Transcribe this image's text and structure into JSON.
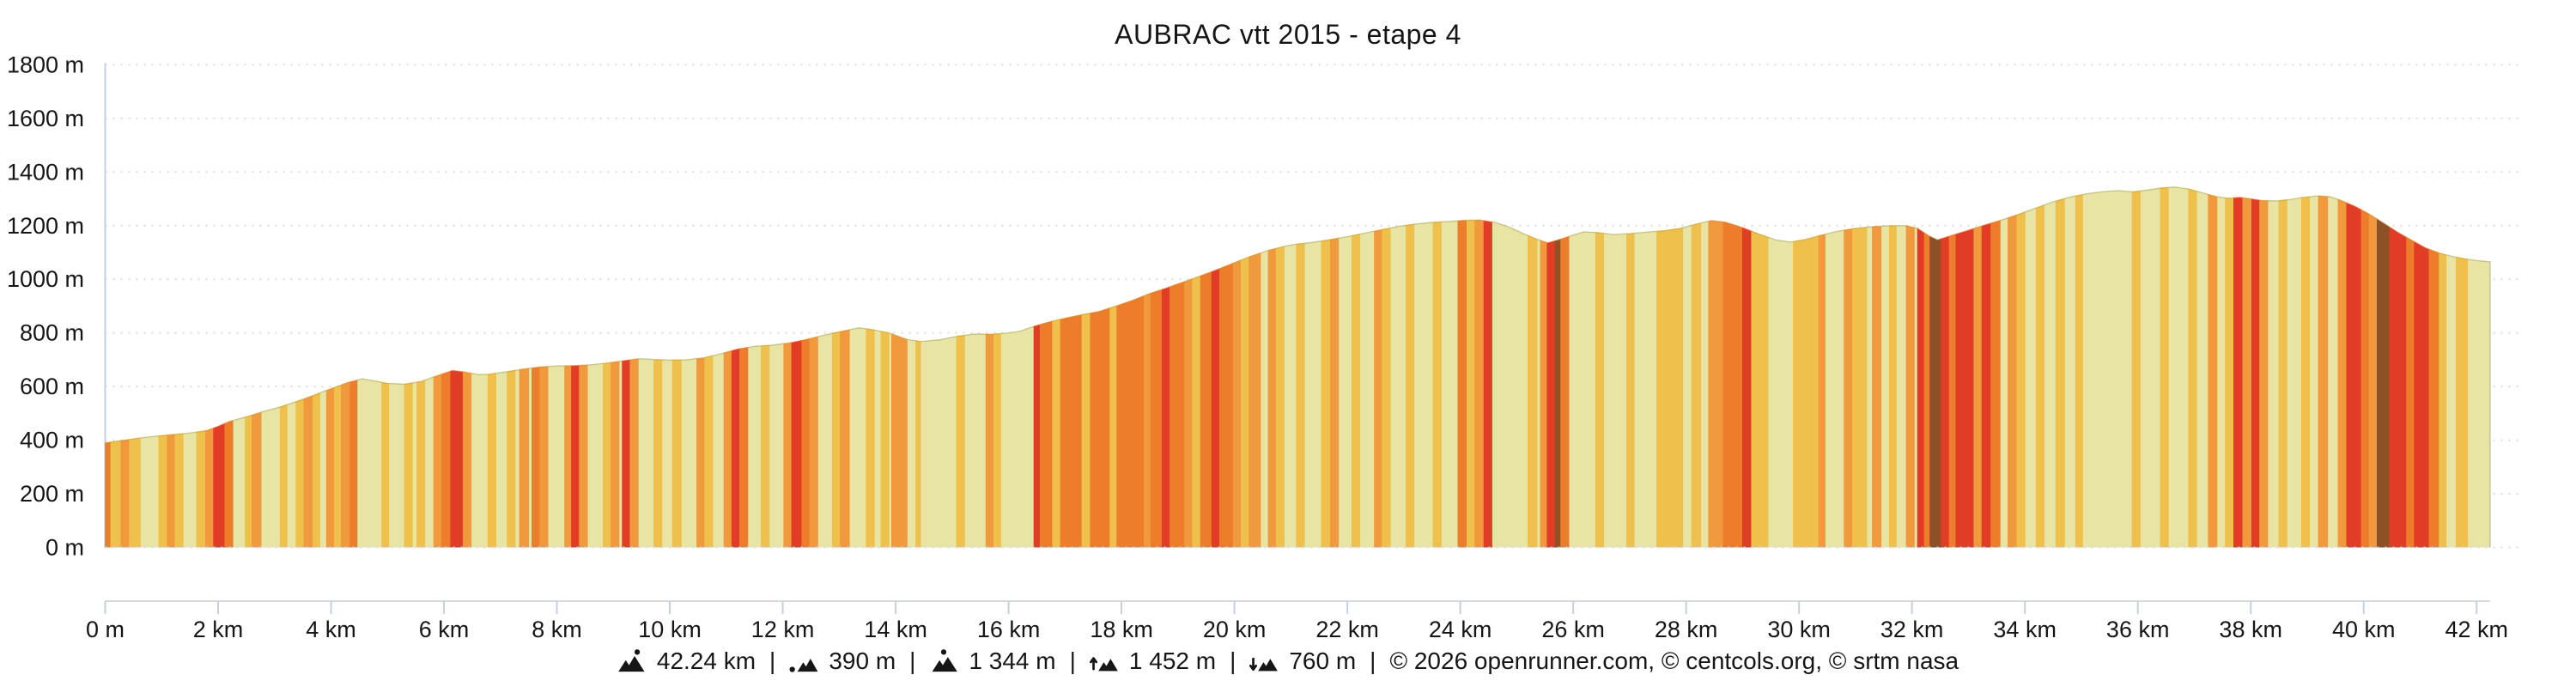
{
  "title": "AUBRAC vtt 2015 - etape 4",
  "chart_data": {
    "type": "area",
    "title": "AUBRAC vtt 2015 - etape 4",
    "x_unit": "km",
    "y_unit": "m",
    "xlim": [
      0,
      42.24
    ],
    "ylim": [
      0,
      1800
    ],
    "grid": "dotted-horizontal",
    "legend": "none",
    "colors": {
      "pale": "#e8e5a4",
      "gold": "#efc14c",
      "orange": "#f19a3d",
      "deep": "#ed7c2b",
      "red": "#e13d26",
      "brown": "#8e5126",
      "y_axis_line": "#c6d0e2",
      "tick_line": "#c6d0e2",
      "grid_line": "#dcdcdc",
      "x_axis_line": "#d9d9d9",
      "text": "#161616",
      "outline": "#8e8e5e"
    },
    "y_ticks": [
      {
        "value": 0,
        "label": "0 m"
      },
      {
        "value": 200,
        "label": "200 m"
      },
      {
        "value": 400,
        "label": "400 m"
      },
      {
        "value": 600,
        "label": "600 m"
      },
      {
        "value": 800,
        "label": "800 m"
      },
      {
        "value": 1000,
        "label": "1000 m"
      },
      {
        "value": 1200,
        "label": "1200 m"
      },
      {
        "value": 1400,
        "label": "1400 m"
      },
      {
        "value": 1600,
        "label": "1600 m"
      },
      {
        "value": 1800,
        "label": "1800 m"
      }
    ],
    "x_ticks": [
      {
        "value": 0,
        "label": "0 m"
      },
      {
        "value": 2,
        "label": "2 km"
      },
      {
        "value": 4,
        "label": "4 km"
      },
      {
        "value": 6,
        "label": "6 km"
      },
      {
        "value": 8,
        "label": "8 km"
      },
      {
        "value": 10,
        "label": "10 km"
      },
      {
        "value": 12,
        "label": "12 km"
      },
      {
        "value": 14,
        "label": "14 km"
      },
      {
        "value": 16,
        "label": "16 km"
      },
      {
        "value": 18,
        "label": "18 km"
      },
      {
        "value": 20,
        "label": "20 km"
      },
      {
        "value": 22,
        "label": "22 km"
      },
      {
        "value": 24,
        "label": "24 km"
      },
      {
        "value": 26,
        "label": "26 km"
      },
      {
        "value": 28,
        "label": "28 km"
      },
      {
        "value": 30,
        "label": "30 km"
      },
      {
        "value": 32,
        "label": "32 km"
      },
      {
        "value": 34,
        "label": "34 km"
      },
      {
        "value": 36,
        "label": "36 km"
      },
      {
        "value": 38,
        "label": "38 km"
      },
      {
        "value": 40,
        "label": "40 km"
      },
      {
        "value": 42,
        "label": "42 km"
      }
    ],
    "profile": [
      [
        0,
        390
      ],
      [
        0.3,
        399
      ],
      [
        0.6,
        408
      ],
      [
        0.9,
        415
      ],
      [
        1.2,
        421
      ],
      [
        1.5,
        427
      ],
      [
        1.8,
        436
      ],
      [
        2.0,
        452
      ],
      [
        2.2,
        470
      ],
      [
        2.5,
        487
      ],
      [
        2.8,
        507
      ],
      [
        3.1,
        524
      ],
      [
        3.4,
        545
      ],
      [
        3.7,
        568
      ],
      [
        4.0,
        592
      ],
      [
        4.3,
        615
      ],
      [
        4.55,
        629
      ],
      [
        4.8,
        620
      ],
      [
        5.0,
        612
      ],
      [
        5.3,
        609
      ],
      [
        5.6,
        619
      ],
      [
        5.9,
        642
      ],
      [
        6.15,
        660
      ],
      [
        6.35,
        655
      ],
      [
        6.6,
        645
      ],
      [
        6.8,
        646
      ],
      [
        7.1,
        655
      ],
      [
        7.4,
        665
      ],
      [
        7.7,
        673
      ],
      [
        8.0,
        677
      ],
      [
        8.3,
        678
      ],
      [
        8.6,
        681
      ],
      [
        8.9,
        688
      ],
      [
        9.2,
        697
      ],
      [
        9.45,
        704
      ],
      [
        9.7,
        701
      ],
      [
        10.0,
        699
      ],
      [
        10.3,
        700
      ],
      [
        10.6,
        707
      ],
      [
        10.9,
        722
      ],
      [
        11.2,
        740
      ],
      [
        11.5,
        750
      ],
      [
        11.8,
        754
      ],
      [
        12.1,
        762
      ],
      [
        12.4,
        775
      ],
      [
        12.7,
        790
      ],
      [
        13.0,
        804
      ],
      [
        13.35,
        819
      ],
      [
        13.6,
        812
      ],
      [
        13.9,
        799
      ],
      [
        14.2,
        776
      ],
      [
        14.45,
        768
      ],
      [
        14.8,
        775
      ],
      [
        15.1,
        788
      ],
      [
        15.4,
        796
      ],
      [
        15.7,
        795
      ],
      [
        16.0,
        800
      ],
      [
        16.2,
        806
      ],
      [
        16.45,
        825
      ],
      [
        16.7,
        840
      ],
      [
        17.0,
        855
      ],
      [
        17.3,
        868
      ],
      [
        17.6,
        880
      ],
      [
        17.9,
        900
      ],
      [
        18.2,
        922
      ],
      [
        18.5,
        947
      ],
      [
        18.8,
        968
      ],
      [
        19.1,
        990
      ],
      [
        19.4,
        1013
      ],
      [
        19.7,
        1037
      ],
      [
        20.0,
        1062
      ],
      [
        20.3,
        1087
      ],
      [
        20.6,
        1108
      ],
      [
        20.9,
        1124
      ],
      [
        21.1,
        1131
      ],
      [
        21.4,
        1138
      ],
      [
        21.7,
        1148
      ],
      [
        22.0,
        1159
      ],
      [
        22.3,
        1172
      ],
      [
        22.6,
        1185
      ],
      [
        22.9,
        1197
      ],
      [
        23.2,
        1206
      ],
      [
        23.5,
        1212
      ],
      [
        23.8,
        1216
      ],
      [
        24.1,
        1220
      ],
      [
        24.35,
        1221
      ],
      [
        24.6,
        1213
      ],
      [
        24.85,
        1196
      ],
      [
        25.1,
        1172
      ],
      [
        25.35,
        1150
      ],
      [
        25.55,
        1136
      ],
      [
        25.75,
        1148
      ],
      [
        26.0,
        1165
      ],
      [
        26.2,
        1177
      ],
      [
        26.45,
        1174
      ],
      [
        26.7,
        1167
      ],
      [
        27.0,
        1170
      ],
      [
        27.3,
        1176
      ],
      [
        27.6,
        1181
      ],
      [
        27.9,
        1190
      ],
      [
        28.2,
        1207
      ],
      [
        28.45,
        1219
      ],
      [
        28.7,
        1213
      ],
      [
        29.0,
        1193
      ],
      [
        29.3,
        1168
      ],
      [
        29.6,
        1146
      ],
      [
        29.85,
        1139
      ],
      [
        30.1,
        1148
      ],
      [
        30.4,
        1165
      ],
      [
        30.7,
        1180
      ],
      [
        31.0,
        1190
      ],
      [
        31.3,
        1196
      ],
      [
        31.6,
        1200
      ],
      [
        31.9,
        1200
      ],
      [
        32.1,
        1190
      ],
      [
        32.3,
        1162
      ],
      [
        32.45,
        1147
      ],
      [
        32.6,
        1157
      ],
      [
        32.8,
        1170
      ],
      [
        33.0,
        1183
      ],
      [
        33.3,
        1203
      ],
      [
        33.6,
        1222
      ],
      [
        33.9,
        1243
      ],
      [
        34.2,
        1266
      ],
      [
        34.5,
        1289
      ],
      [
        34.8,
        1307
      ],
      [
        35.1,
        1319
      ],
      [
        35.4,
        1327
      ],
      [
        35.65,
        1331
      ],
      [
        35.9,
        1326
      ],
      [
        36.15,
        1332
      ],
      [
        36.4,
        1340
      ],
      [
        36.65,
        1344
      ],
      [
        36.9,
        1337
      ],
      [
        37.15,
        1322
      ],
      [
        37.4,
        1308
      ],
      [
        37.6,
        1302
      ],
      [
        37.8,
        1306
      ],
      [
        38.0,
        1300
      ],
      [
        38.2,
        1294
      ],
      [
        38.45,
        1292
      ],
      [
        38.7,
        1298
      ],
      [
        38.95,
        1306
      ],
      [
        39.2,
        1311
      ],
      [
        39.4,
        1308
      ],
      [
        39.6,
        1294
      ],
      [
        39.85,
        1272
      ],
      [
        40.1,
        1243
      ],
      [
        40.35,
        1210
      ],
      [
        40.6,
        1176
      ],
      [
        40.85,
        1146
      ],
      [
        41.1,
        1117
      ],
      [
        41.35,
        1097
      ],
      [
        41.6,
        1084
      ],
      [
        41.85,
        1074
      ],
      [
        42.05,
        1069
      ],
      [
        42.24,
        1065
      ]
    ],
    "bands": [
      [
        0.0,
        0.1,
        "deep"
      ],
      [
        0.1,
        0.28,
        "gold"
      ],
      [
        0.28,
        0.43,
        "orange"
      ],
      [
        0.43,
        0.62,
        "gold"
      ],
      [
        0.95,
        1.1,
        "gold"
      ],
      [
        1.1,
        1.24,
        "orange"
      ],
      [
        1.24,
        1.38,
        "gold"
      ],
      [
        1.62,
        1.78,
        "gold"
      ],
      [
        1.78,
        1.92,
        "orange"
      ],
      [
        1.92,
        2.12,
        "red"
      ],
      [
        2.12,
        2.26,
        "deep"
      ],
      [
        2.48,
        2.6,
        "gold"
      ],
      [
        2.6,
        2.76,
        "orange"
      ],
      [
        3.1,
        3.22,
        "gold"
      ],
      [
        3.38,
        3.52,
        "gold"
      ],
      [
        3.52,
        3.68,
        "orange"
      ],
      [
        3.68,
        3.8,
        "gold"
      ],
      [
        3.92,
        4.06,
        "orange"
      ],
      [
        4.06,
        4.18,
        "gold"
      ],
      [
        4.18,
        4.34,
        "orange"
      ],
      [
        4.34,
        4.46,
        "deep"
      ],
      [
        4.9,
        5.02,
        "gold"
      ],
      [
        5.3,
        5.44,
        "gold"
      ],
      [
        5.52,
        5.66,
        "gold"
      ],
      [
        5.82,
        5.96,
        "orange"
      ],
      [
        5.96,
        6.12,
        "deep"
      ],
      [
        6.12,
        6.34,
        "red"
      ],
      [
        6.34,
        6.48,
        "orange"
      ],
      [
        6.78,
        6.92,
        "gold"
      ],
      [
        7.12,
        7.26,
        "gold"
      ],
      [
        7.34,
        7.5,
        "orange"
      ],
      [
        7.56,
        7.7,
        "deep"
      ],
      [
        7.7,
        7.84,
        "orange"
      ],
      [
        8.14,
        8.26,
        "orange"
      ],
      [
        8.26,
        8.4,
        "red"
      ],
      [
        8.4,
        8.54,
        "orange"
      ],
      [
        8.82,
        8.96,
        "gold"
      ],
      [
        8.96,
        9.1,
        "orange"
      ],
      [
        9.16,
        9.3,
        "red"
      ],
      [
        9.3,
        9.44,
        "orange"
      ],
      [
        9.72,
        9.86,
        "gold"
      ],
      [
        10.05,
        10.2,
        "gold"
      ],
      [
        10.48,
        10.62,
        "orange"
      ],
      [
        10.62,
        10.76,
        "gold"
      ],
      [
        10.96,
        11.1,
        "orange"
      ],
      [
        11.1,
        11.24,
        "red"
      ],
      [
        11.24,
        11.38,
        "deep"
      ],
      [
        11.62,
        11.76,
        "gold"
      ],
      [
        12.02,
        12.16,
        "orange"
      ],
      [
        12.16,
        12.34,
        "red"
      ],
      [
        12.34,
        12.48,
        "deep"
      ],
      [
        12.48,
        12.62,
        "orange"
      ],
      [
        12.88,
        13.02,
        "gold"
      ],
      [
        13.02,
        13.18,
        "orange"
      ],
      [
        13.48,
        13.62,
        "gold"
      ],
      [
        13.74,
        13.88,
        "gold"
      ],
      [
        13.93,
        14.2,
        "orange"
      ],
      [
        14.36,
        14.44,
        "gold"
      ],
      [
        15.08,
        15.22,
        "gold"
      ],
      [
        15.6,
        15.74,
        "orange"
      ],
      [
        15.74,
        15.86,
        "gold"
      ],
      [
        16.45,
        16.56,
        "red"
      ],
      [
        16.56,
        16.78,
        "deep"
      ],
      [
        16.78,
        16.92,
        "gold"
      ],
      [
        16.92,
        17.3,
        "deep"
      ],
      [
        17.3,
        17.45,
        "gold"
      ],
      [
        17.45,
        17.8,
        "deep"
      ],
      [
        17.8,
        17.92,
        "gold"
      ],
      [
        17.92,
        18.4,
        "deep"
      ],
      [
        18.4,
        18.52,
        "orange"
      ],
      [
        18.52,
        18.72,
        "deep"
      ],
      [
        18.72,
        18.86,
        "red"
      ],
      [
        18.86,
        19.12,
        "deep"
      ],
      [
        19.12,
        19.26,
        "orange"
      ],
      [
        19.26,
        19.4,
        "gold"
      ],
      [
        19.4,
        19.6,
        "deep"
      ],
      [
        19.6,
        19.74,
        "red"
      ],
      [
        19.74,
        19.98,
        "deep"
      ],
      [
        19.98,
        20.12,
        "orange"
      ],
      [
        20.12,
        20.26,
        "gold"
      ],
      [
        20.26,
        20.46,
        "orange"
      ],
      [
        20.6,
        20.74,
        "orange"
      ],
      [
        20.74,
        20.88,
        "gold"
      ],
      [
        21.1,
        21.24,
        "gold"
      ],
      [
        21.54,
        21.7,
        "gold"
      ],
      [
        21.7,
        21.84,
        "orange"
      ],
      [
        22.08,
        22.22,
        "gold"
      ],
      [
        22.48,
        22.62,
        "orange"
      ],
      [
        22.62,
        22.76,
        "gold"
      ],
      [
        23.04,
        23.18,
        "gold"
      ],
      [
        23.52,
        23.66,
        "gold"
      ],
      [
        23.96,
        24.12,
        "deep"
      ],
      [
        24.12,
        24.26,
        "gold"
      ],
      [
        24.26,
        24.42,
        "orange"
      ],
      [
        24.42,
        24.56,
        "red"
      ],
      [
        25.2,
        25.36,
        "gold"
      ],
      [
        25.42,
        25.54,
        "orange"
      ],
      [
        25.54,
        25.68,
        "red"
      ],
      [
        25.68,
        25.78,
        "brown"
      ],
      [
        25.78,
        25.92,
        "deep"
      ],
      [
        26.4,
        26.54,
        "gold"
      ],
      [
        26.95,
        27.08,
        "gold"
      ],
      [
        27.48,
        27.94,
        "gold"
      ],
      [
        28.1,
        28.26,
        "gold"
      ],
      [
        28.4,
        28.66,
        "orange"
      ],
      [
        28.66,
        29.0,
        "deep"
      ],
      [
        29.0,
        29.16,
        "red"
      ],
      [
        29.16,
        29.45,
        "gold"
      ],
      [
        29.9,
        30.35,
        "gold"
      ],
      [
        30.35,
        30.46,
        "orange"
      ],
      [
        30.8,
        30.95,
        "orange"
      ],
      [
        30.95,
        31.2,
        "gold"
      ],
      [
        31.3,
        31.45,
        "orange"
      ],
      [
        31.6,
        31.72,
        "gold"
      ],
      [
        31.9,
        32.04,
        "orange"
      ],
      [
        32.1,
        32.22,
        "red"
      ],
      [
        32.22,
        32.32,
        "deep"
      ],
      [
        32.32,
        32.52,
        "brown"
      ],
      [
        32.52,
        32.66,
        "red"
      ],
      [
        32.66,
        32.78,
        "deep"
      ],
      [
        32.78,
        33.1,
        "red"
      ],
      [
        33.1,
        33.24,
        "orange"
      ],
      [
        33.24,
        33.4,
        "red"
      ],
      [
        33.4,
        33.56,
        "deep"
      ],
      [
        33.7,
        33.86,
        "orange"
      ],
      [
        33.86,
        34.0,
        "gold"
      ],
      [
        34.2,
        34.34,
        "gold"
      ],
      [
        34.55,
        34.7,
        "gold"
      ],
      [
        34.9,
        35.02,
        "gold"
      ],
      [
        35.9,
        36.04,
        "gold"
      ],
      [
        36.4,
        36.54,
        "gold"
      ],
      [
        36.9,
        37.04,
        "gold"
      ],
      [
        37.25,
        37.4,
        "orange"
      ],
      [
        37.55,
        37.7,
        "gold"
      ],
      [
        37.7,
        37.86,
        "red"
      ],
      [
        37.86,
        38.02,
        "orange"
      ],
      [
        38.02,
        38.16,
        "red"
      ],
      [
        38.16,
        38.3,
        "orange"
      ],
      [
        38.5,
        38.64,
        "gold"
      ],
      [
        38.9,
        39.04,
        "gold"
      ],
      [
        39.2,
        39.36,
        "orange"
      ],
      [
        39.55,
        39.7,
        "orange"
      ],
      [
        39.7,
        39.96,
        "red"
      ],
      [
        39.96,
        40.1,
        "deep"
      ],
      [
        40.1,
        40.24,
        "orange"
      ],
      [
        40.24,
        40.46,
        "brown"
      ],
      [
        40.46,
        40.76,
        "red"
      ],
      [
        40.76,
        40.9,
        "deep"
      ],
      [
        40.9,
        41.16,
        "red"
      ],
      [
        41.16,
        41.34,
        "deep"
      ],
      [
        41.34,
        41.46,
        "gold"
      ],
      [
        41.64,
        41.84,
        "gold"
      ]
    ]
  },
  "footer": {
    "separator": "|",
    "stats": [
      {
        "icon": "distance-icon",
        "value": "42.24 km"
      },
      {
        "icon": "min-elevation-icon",
        "value": "390 m"
      },
      {
        "icon": "max-elevation-icon",
        "value": "1 344 m"
      },
      {
        "icon": "total-ascent-icon",
        "value": "1 452 m"
      },
      {
        "icon": "total-descent-icon",
        "value": "760 m"
      }
    ],
    "copyright": "© 2026 openrunner.com, © centcols.org, © srtm nasa"
  }
}
